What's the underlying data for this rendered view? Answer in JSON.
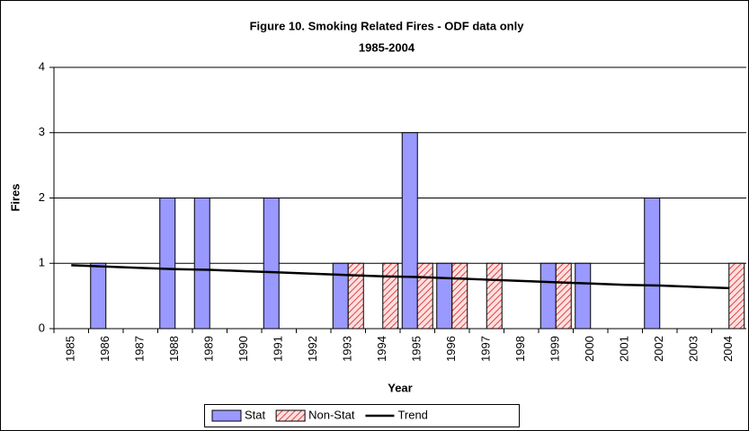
{
  "chart_data": {
    "type": "bar",
    "title": "Figure 10.  Smoking Related Fires - ODF data only",
    "subtitle": "1985-2004",
    "x_label": "Year",
    "y_label": "Fires",
    "categories": [
      "1985",
      "1986",
      "1987",
      "1988",
      "1989",
      "1990",
      "1991",
      "1992",
      "1993",
      "1994",
      "1995",
      "1996",
      "1997",
      "1998",
      "1999",
      "2000",
      "2001",
      "2002",
      "2003",
      "2004"
    ],
    "series": [
      {
        "name": "Stat",
        "color": "#9999ff",
        "values": [
          0,
          1,
          0,
          2,
          2,
          0,
          2,
          0,
          1,
          0,
          3,
          1,
          0,
          0,
          1,
          1,
          0,
          2,
          0,
          0
        ]
      },
      {
        "name": "Non-Stat",
        "color": "#ff6666",
        "hatch": true,
        "values": [
          0,
          0,
          0,
          0,
          0,
          0,
          0,
          0,
          1,
          1,
          1,
          1,
          1,
          0,
          1,
          0,
          0,
          0,
          0,
          1
        ]
      },
      {
        "name": "Trend",
        "type": "line",
        "color": "#000000",
        "values": [
          0.97,
          0.95,
          0.93,
          0.91,
          0.9,
          0.88,
          0.86,
          0.84,
          0.82,
          0.8,
          0.79,
          0.77,
          0.75,
          0.73,
          0.71,
          0.69,
          0.67,
          0.66,
          0.64,
          0.62
        ]
      }
    ],
    "ylim": [
      0,
      4
    ],
    "yticks": [
      0,
      1,
      2,
      3,
      4
    ],
    "grid": true,
    "legend": "bottom"
  }
}
